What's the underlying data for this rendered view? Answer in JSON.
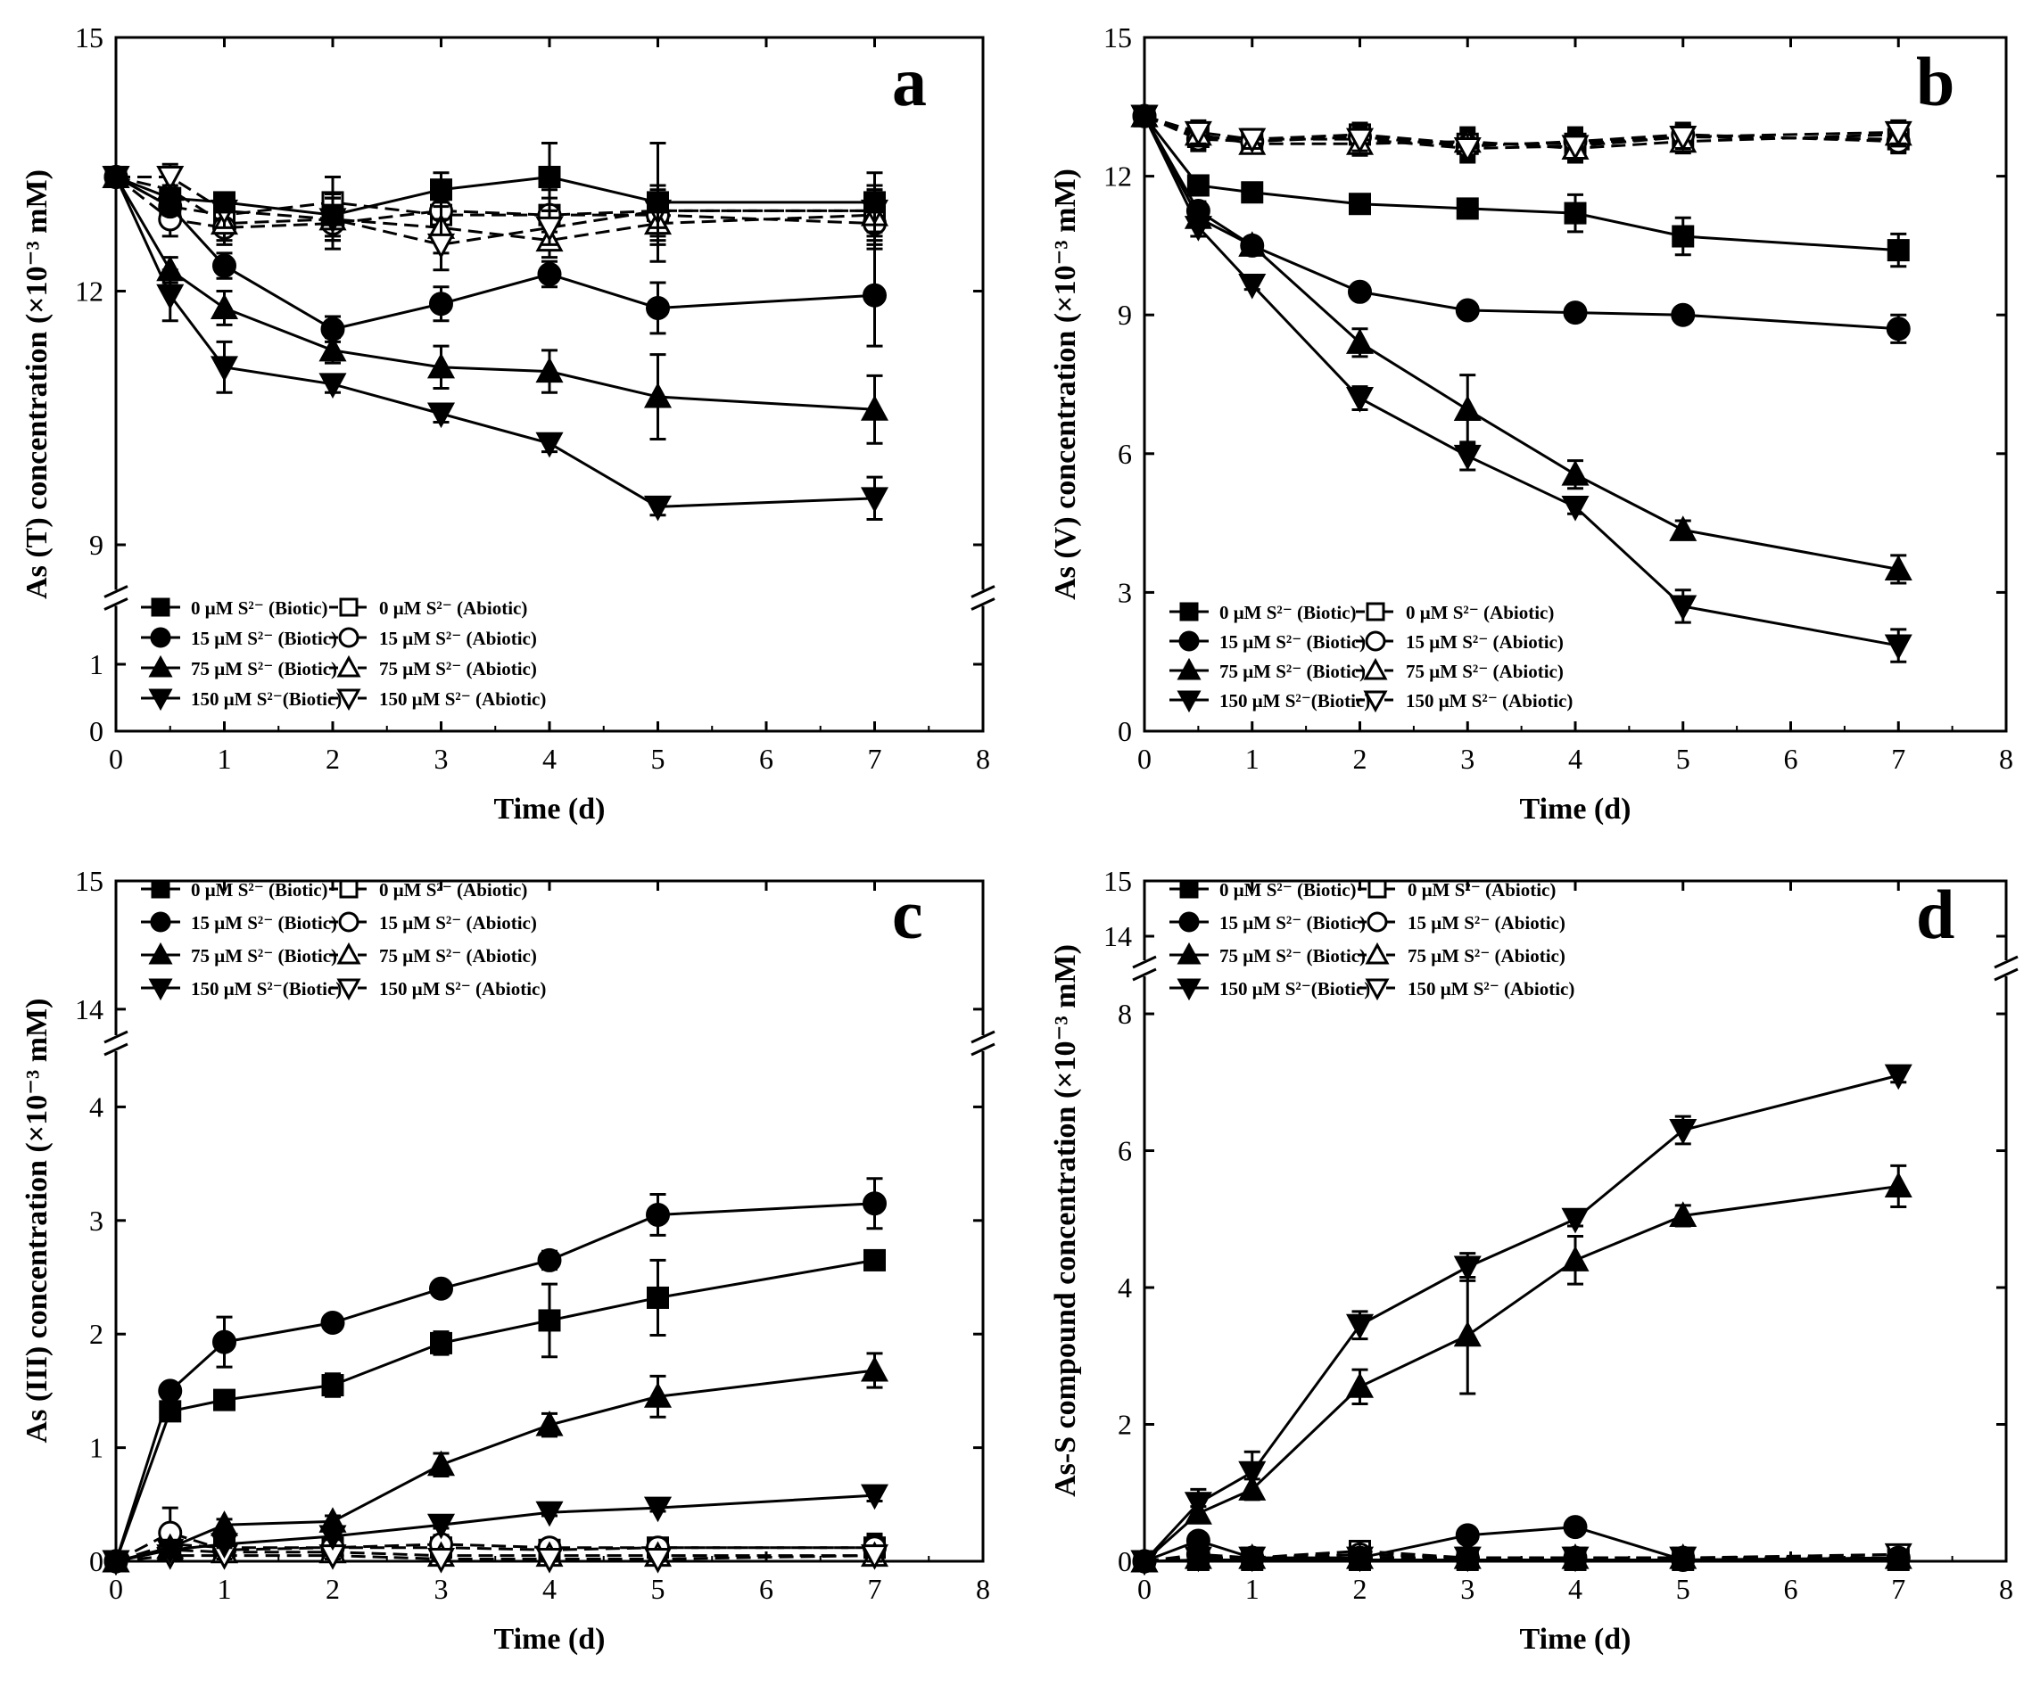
{
  "figure": {
    "description_free": true,
    "legend": [
      {
        "biotic": "0 μM S²⁻   (Biotic)",
        "abiotic": "0 μM S²⁻    (Abiotic)"
      },
      {
        "biotic": "15 μM S²⁻  (Biotic)",
        "abiotic": "15 μM S²⁻  (Abiotic)"
      },
      {
        "biotic": "75 μM S²⁻  (Biotic)",
        "abiotic": "75 μM S²⁻  (Abiotic)"
      },
      {
        "biotic": "150 μM S²⁻(Biotic)",
        "abiotic": "150 μM S²⁻ (Abiotic)"
      }
    ],
    "markers": [
      "square",
      "circle",
      "triangle-up",
      "triangle-down"
    ]
  },
  "chart_data": [
    {
      "type": "line",
      "panel": "a",
      "title": "",
      "xlabel": "Time (d)",
      "ylabel": "As (T) concentration (×10⁻³ mM)",
      "xlim": [
        0,
        8
      ],
      "xticks": [
        0,
        1,
        2,
        3,
        4,
        5,
        6,
        7,
        8
      ],
      "y_break": {
        "lower": [
          0,
          1.2
        ],
        "upper": [
          9,
          15
        ]
      },
      "yticks": [
        0,
        1,
        9,
        12,
        15
      ],
      "x": [
        0,
        0.5,
        1,
        2,
        3,
        4,
        5,
        7
      ],
      "series": [
        {
          "name": "0 μM S2- (Biotic)",
          "marker": "square",
          "filled": true,
          "dashed": false,
          "values": [
            13.35,
            13.1,
            13.05,
            12.9,
            13.2,
            13.35,
            13.05,
            13.05
          ],
          "err": [
            0,
            0.15,
            0.1,
            0.25,
            0.2,
            0.4,
            0.7,
            0.35
          ]
        },
        {
          "name": "15 μM S2- (Biotic)",
          "marker": "circle",
          "filled": true,
          "dashed": false,
          "values": [
            13.35,
            13.0,
            12.3,
            11.55,
            11.85,
            12.2,
            11.8,
            11.95
          ],
          "err": [
            0,
            0.1,
            0.15,
            0.15,
            0.2,
            0.15,
            0.3,
            0.6
          ]
        },
        {
          "name": "75 μM S2- (Biotic)",
          "marker": "triangle-up",
          "filled": true,
          "dashed": false,
          "values": [
            13.35,
            12.25,
            11.8,
            11.3,
            11.1,
            11.05,
            10.75,
            10.6
          ],
          "err": [
            0,
            0.15,
            0.2,
            0.15,
            0.25,
            0.25,
            0.5,
            0.4
          ]
        },
        {
          "name": "150 μM S2- (Biotic)",
          "marker": "triangle-down",
          "filled": true,
          "dashed": false,
          "values": [
            13.35,
            11.95,
            11.1,
            10.9,
            10.55,
            10.2,
            9.45,
            9.55
          ],
          "err": [
            0,
            0.3,
            0.3,
            0.1,
            0.1,
            0.1,
            0.1,
            0.25
          ]
        },
        {
          "name": "0 μM S2- (Abiotic)",
          "marker": "square",
          "filled": false,
          "dashed": true,
          "values": [
            13.35,
            13.0,
            12.9,
            13.05,
            12.9,
            12.9,
            12.95,
            12.95
          ],
          "err": [
            0,
            0.2,
            0.2,
            0.3,
            0.2,
            0.2,
            0.3,
            0.3
          ]
        },
        {
          "name": "15 μM S2- (Abiotic)",
          "marker": "circle",
          "filled": false,
          "dashed": true,
          "values": [
            13.35,
            12.85,
            12.75,
            12.8,
            12.95,
            12.9,
            12.9,
            12.8
          ],
          "err": [
            0,
            0.2,
            0.2,
            0.3,
            0.3,
            0.3,
            0.3,
            0.3
          ]
        },
        {
          "name": "75 μM S2- (Abiotic)",
          "marker": "triangle-up",
          "filled": false,
          "dashed": true,
          "values": [
            13.35,
            13.2,
            12.8,
            12.85,
            12.75,
            12.6,
            12.8,
            12.9
          ],
          "err": [
            0,
            0.2,
            0.2,
            0.25,
            0.3,
            0.2,
            0.25,
            0.3
          ]
        },
        {
          "name": "150 μM S2- (Abiotic)",
          "marker": "triangle-down",
          "filled": false,
          "dashed": true,
          "values": [
            13.35,
            13.35,
            12.95,
            12.85,
            12.55,
            12.75,
            12.95,
            12.95
          ],
          "err": [
            0,
            0.15,
            0.2,
            0.25,
            0.3,
            0.2,
            0.2,
            0.25
          ]
        }
      ]
    },
    {
      "type": "line",
      "panel": "b",
      "title": "",
      "xlabel": "Time (d)",
      "ylabel": "As (V) concentration (×10⁻³ mM)",
      "xlim": [
        0,
        8
      ],
      "ylim": [
        0,
        15
      ],
      "xticks": [
        0,
        1,
        2,
        3,
        4,
        5,
        6,
        7,
        8
      ],
      "yticks": [
        0,
        3,
        6,
        9,
        12,
        15
      ],
      "x": [
        0,
        0.5,
        1,
        2,
        3,
        4,
        5,
        7
      ],
      "series": [
        {
          "name": "0 μM S2- (Biotic)",
          "marker": "square",
          "filled": true,
          "dashed": false,
          "values": [
            13.3,
            11.8,
            11.65,
            11.4,
            11.3,
            11.2,
            10.7,
            10.4
          ],
          "err": [
            0,
            0.2,
            0.1,
            0.1,
            0.1,
            0.4,
            0.4,
            0.35
          ]
        },
        {
          "name": "15 μM S2- (Biotic)",
          "marker": "circle",
          "filled": true,
          "dashed": false,
          "values": [
            13.3,
            11.25,
            10.5,
            9.5,
            9.1,
            9.05,
            9.0,
            8.7
          ],
          "err": [
            0,
            0.2,
            0.15,
            0.1,
            0.1,
            0.1,
            0.1,
            0.3
          ]
        },
        {
          "name": "75 μM S2- (Biotic)",
          "marker": "triangle-up",
          "filled": true,
          "dashed": false,
          "values": [
            13.3,
            11.1,
            10.5,
            8.4,
            6.95,
            5.55,
            4.35,
            3.5
          ],
          "err": [
            0,
            0.2,
            0.15,
            0.3,
            0.75,
            0.3,
            0.2,
            0.3
          ]
        },
        {
          "name": "150 μM S2- (Biotic)",
          "marker": "triangle-down",
          "filled": true,
          "dashed": false,
          "values": [
            13.3,
            10.9,
            9.65,
            7.2,
            5.95,
            4.85,
            2.7,
            1.85
          ],
          "err": [
            0,
            0.2,
            0.1,
            0.25,
            0.3,
            0.15,
            0.35,
            0.35
          ]
        },
        {
          "name": "0 μM S2- (Abiotic)",
          "marker": "square",
          "filled": false,
          "dashed": true,
          "values": [
            13.3,
            12.85,
            12.8,
            12.9,
            12.7,
            12.7,
            12.85,
            12.8
          ],
          "err": [
            0,
            0.25,
            0.2,
            0.25,
            0.3,
            0.3,
            0.25,
            0.25
          ]
        },
        {
          "name": "15 μM S2- (Abiotic)",
          "marker": "circle",
          "filled": false,
          "dashed": true,
          "values": [
            13.3,
            12.8,
            12.75,
            12.85,
            12.65,
            12.75,
            12.9,
            12.75
          ],
          "err": [
            0,
            0.25,
            0.2,
            0.25,
            0.3,
            0.3,
            0.25,
            0.25
          ]
        },
        {
          "name": "75 μM S2- (Abiotic)",
          "marker": "triangle-up",
          "filled": false,
          "dashed": true,
          "values": [
            13.3,
            12.9,
            12.7,
            12.7,
            12.75,
            12.6,
            12.75,
            12.9
          ],
          "err": [
            0,
            0.25,
            0.2,
            0.25,
            0.3,
            0.3,
            0.25,
            0.25
          ]
        },
        {
          "name": "150 μM S2- (Abiotic)",
          "marker": "triangle-down",
          "filled": false,
          "dashed": true,
          "values": [
            13.3,
            12.95,
            12.8,
            12.8,
            12.6,
            12.65,
            12.85,
            12.95
          ],
          "err": [
            0,
            0.25,
            0.2,
            0.25,
            0.3,
            0.3,
            0.25,
            0.25
          ]
        }
      ]
    },
    {
      "type": "line",
      "panel": "c",
      "title": "",
      "xlabel": "Time (d)",
      "ylabel": "As (III) concentration (×10⁻³ mM)",
      "xlim": [
        0,
        8
      ],
      "xticks": [
        0,
        1,
        2,
        3,
        4,
        5,
        6,
        7,
        8
      ],
      "y_break": {
        "lower": [
          0,
          4.6
        ],
        "upper": [
          13.7,
          15
        ]
      },
      "yticks": [
        0,
        1,
        2,
        3,
        4,
        14,
        15
      ],
      "x": [
        0,
        0.5,
        1,
        2,
        3,
        4,
        5,
        7
      ],
      "series": [
        {
          "name": "0 μM S2- (Biotic)",
          "marker": "square",
          "filled": true,
          "dashed": false,
          "values": [
            0,
            1.32,
            1.42,
            1.55,
            1.92,
            2.12,
            2.32,
            2.65
          ],
          "err": [
            0,
            0.08,
            0.08,
            0.1,
            0.1,
            0.32,
            0.33,
            0.05
          ]
        },
        {
          "name": "15 μM S2- (Biotic)",
          "marker": "circle",
          "filled": true,
          "dashed": false,
          "values": [
            0,
            1.5,
            1.93,
            2.1,
            2.4,
            2.65,
            3.05,
            3.15
          ],
          "err": [
            0,
            0.05,
            0.22,
            0.05,
            0.05,
            0.08,
            0.18,
            0.22
          ]
        },
        {
          "name": "75 μM S2- (Biotic)",
          "marker": "triangle-up",
          "filled": true,
          "dashed": false,
          "values": [
            0,
            0.12,
            0.32,
            0.35,
            0.85,
            1.2,
            1.45,
            1.68
          ],
          "err": [
            0,
            0.05,
            0.05,
            0.05,
            0.1,
            0.1,
            0.18,
            0.15
          ]
        },
        {
          "name": "150 μM S2- (Biotic)",
          "marker": "triangle-down",
          "filled": true,
          "dashed": false,
          "values": [
            0,
            0.1,
            0.15,
            0.22,
            0.32,
            0.43,
            0.47,
            0.58
          ],
          "err": [
            0,
            0.03,
            0.03,
            0.03,
            0.03,
            0.03,
            0.03,
            0.05
          ]
        },
        {
          "name": "0 μM S2- (Abiotic)",
          "marker": "square",
          "filled": false,
          "dashed": true,
          "values": [
            0,
            0.15,
            0.12,
            0.12,
            0.12,
            0.1,
            0.12,
            0.12
          ],
          "err": [
            0,
            0.08,
            0.05,
            0.05,
            0.05,
            0.05,
            0.05,
            0.1
          ]
        },
        {
          "name": "15 μM S2- (Abiotic)",
          "marker": "circle",
          "filled": false,
          "dashed": true,
          "values": [
            0,
            0.25,
            0.1,
            0.12,
            0.15,
            0.12,
            0.12,
            0.12
          ],
          "err": [
            0,
            0.22,
            0.05,
            0.05,
            0.08,
            0.05,
            0.05,
            0.12
          ]
        },
        {
          "name": "75 μM S2- (Abiotic)",
          "marker": "triangle-up",
          "filled": false,
          "dashed": true,
          "values": [
            0,
            0.1,
            0.08,
            0.08,
            0.05,
            0.05,
            0.05,
            0.05
          ],
          "err": [
            0,
            0.05,
            0.04,
            0.04,
            0.04,
            0.04,
            0.04,
            0.04
          ]
        },
        {
          "name": "150 μM S2- (Abiotic)",
          "marker": "triangle-down",
          "filled": false,
          "dashed": true,
          "values": [
            0,
            0.05,
            0.05,
            0.05,
            0.02,
            0.02,
            0.02,
            0.05
          ],
          "err": [
            0,
            0.03,
            0.03,
            0.03,
            0.03,
            0.03,
            0.03,
            0.06
          ]
        }
      ]
    },
    {
      "type": "line",
      "panel": "d",
      "title": "",
      "xlabel": "Time (d)",
      "ylabel": "As-S compound concentration (×10⁻³ mM)",
      "xlim": [
        0,
        8
      ],
      "xticks": [
        0,
        1,
        2,
        3,
        4,
        5,
        6,
        7,
        8
      ],
      "y_break": {
        "lower": [
          0,
          8.6
        ],
        "upper": [
          13.5,
          15
        ]
      },
      "yticks": [
        0,
        2,
        4,
        6,
        8,
        14,
        15
      ],
      "x": [
        0,
        0.5,
        1,
        2,
        3,
        4,
        5,
        7
      ],
      "series": [
        {
          "name": "0 μM S2- (Biotic)",
          "marker": "square",
          "filled": true,
          "dashed": false,
          "values": [
            0,
            0.02,
            0.02,
            0.02,
            0.02,
            0.02,
            0.02,
            0.02
          ],
          "err": [
            0,
            0,
            0,
            0,
            0,
            0,
            0,
            0
          ]
        },
        {
          "name": "15 μM S2- (Biotic)",
          "marker": "circle",
          "filled": true,
          "dashed": false,
          "values": [
            0,
            0.3,
            0.05,
            0.05,
            0.38,
            0.5,
            0.02,
            0.05
          ],
          "err": [
            0,
            0.1,
            0.1,
            0.05,
            0.05,
            0.05,
            0.05,
            0.05
          ]
        },
        {
          "name": "75 μM S2- (Biotic)",
          "marker": "triangle-up",
          "filled": true,
          "dashed": false,
          "values": [
            0,
            0.7,
            1.05,
            2.55,
            3.3,
            4.4,
            5.05,
            5.48
          ],
          "err": [
            0,
            0.1,
            0.15,
            0.25,
            0.85,
            0.35,
            0.15,
            0.3
          ]
        },
        {
          "name": "150 μM S2- (Biotic)",
          "marker": "triangle-down",
          "filled": true,
          "dashed": false,
          "values": [
            0,
            0.85,
            1.3,
            3.45,
            4.3,
            5.0,
            6.3,
            7.1
          ],
          "err": [
            0,
            0.2,
            0.3,
            0.2,
            0.2,
            0.1,
            0.2,
            0.1
          ]
        },
        {
          "name": "0 μM S2- (Abiotic)",
          "marker": "square",
          "filled": false,
          "dashed": true,
          "values": [
            0,
            0.05,
            0.05,
            0.15,
            0.05,
            0.05,
            0.05,
            0.05
          ],
          "err": [
            0,
            0.05,
            0.05,
            0.05,
            0.05,
            0.05,
            0.05,
            0.05
          ]
        },
        {
          "name": "15 μM S2- (Abiotic)",
          "marker": "circle",
          "filled": false,
          "dashed": true,
          "values": [
            0,
            0.1,
            0.05,
            0.1,
            0.05,
            0.05,
            0.05,
            0.05
          ],
          "err": [
            0,
            0.05,
            0.05,
            0.05,
            0.05,
            0.05,
            0.05,
            0.05
          ]
        },
        {
          "name": "75 μM S2- (Abiotic)",
          "marker": "triangle-up",
          "filled": false,
          "dashed": true,
          "values": [
            0,
            0.05,
            0.05,
            0.05,
            0.05,
            0.05,
            0.05,
            0.05
          ],
          "err": [
            0,
            0.05,
            0.05,
            0.05,
            0.05,
            0.05,
            0.05,
            0.05
          ]
        },
        {
          "name": "150 μM S2- (Abiotic)",
          "marker": "triangle-down",
          "filled": false,
          "dashed": true,
          "values": [
            0,
            0.05,
            0.05,
            0.05,
            0.05,
            0.05,
            0.05,
            0.1
          ],
          "err": [
            0,
            0.05,
            0.05,
            0.05,
            0.05,
            0.05,
            0.05,
            0.05
          ]
        }
      ]
    }
  ]
}
